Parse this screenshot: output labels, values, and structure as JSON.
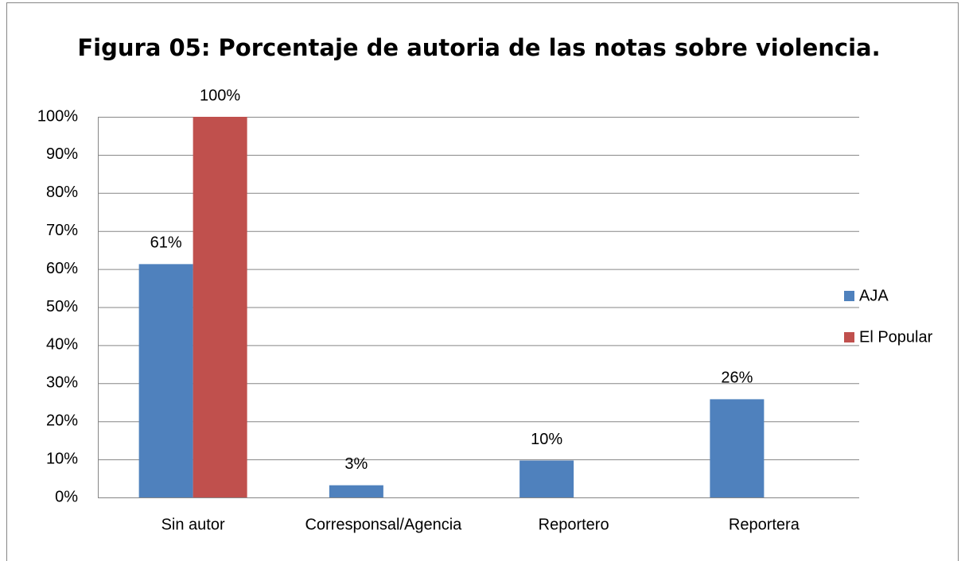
{
  "chart_data": {
    "type": "bar",
    "title": "Figura 05: Porcentaje de autoria  de las notas sobre violencia.",
    "categories": [
      "Sin autor",
      "Corresponsal/Agencia",
      "Reportero",
      "Reportera"
    ],
    "series": [
      {
        "name": "AJA",
        "color": "#4f81bd",
        "values": [
          61.3,
          3.2,
          9.7,
          25.8
        ],
        "value_labels": [
          "61%",
          "3%",
          "10%",
          "26%"
        ]
      },
      {
        "name": "El Popular",
        "color": "#c0504d",
        "values": [
          100,
          null,
          null,
          null
        ],
        "value_labels": [
          "100%",
          null,
          null,
          null
        ]
      }
    ],
    "ylim": [
      0,
      100
    ],
    "yticks": [
      {
        "value": 0,
        "label": "0%"
      },
      {
        "value": 10,
        "label": "10%"
      },
      {
        "value": 20,
        "label": "20%"
      },
      {
        "value": 30,
        "label": "30%"
      },
      {
        "value": 40,
        "label": "40%"
      },
      {
        "value": 50,
        "label": "50%"
      },
      {
        "value": 60,
        "label": "60%"
      },
      {
        "value": 70,
        "label": "70%"
      },
      {
        "value": 80,
        "label": "80%"
      },
      {
        "value": 90,
        "label": "90%"
      },
      {
        "value": 100,
        "label": "100%"
      }
    ],
    "grid": true,
    "legend": "right"
  }
}
